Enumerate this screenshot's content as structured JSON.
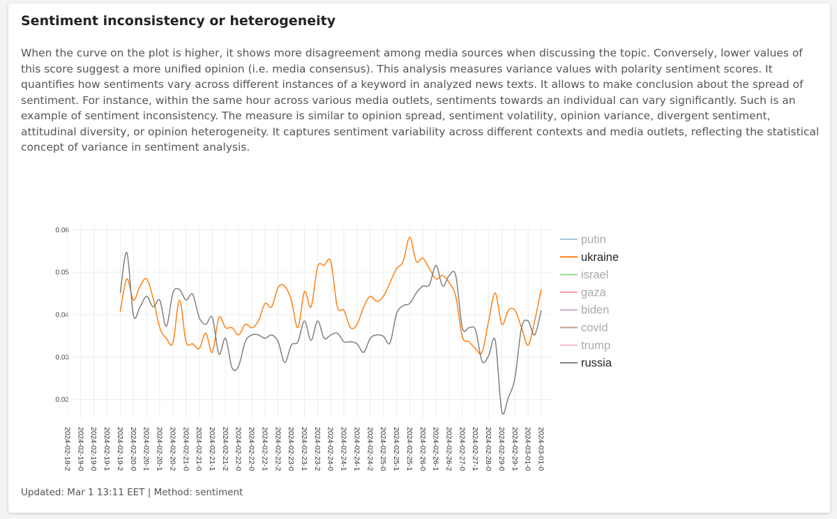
{
  "header": {
    "title": "Sentiment inconsistency or heterogeneity"
  },
  "description": "When the curve on the plot is higher, it shows more disagreement among media sources when discussing the topic. Conversely, lower values of this score suggest a more unified opinion (i.e. media consensus). This analysis measures variance values with polarity sentiment scores. It quantifies how sentiments vary across different instances of a keyword in analyzed news texts. It allows to make conclusion about the spread of sentiment. For instance, within the same hour across various media outlets, sentiments towards an individual can vary significantly. Such is an example of sentiment inconsistency. The measure is similar to opinion spread, sentiment volatility, opinion variance, divergent sentiment, attitudinal diversity, or opinion heterogeneity. It captures sentiment variability across different contexts and media outlets, reflecting the statistical concept of variance in sentiment analysis.",
  "footer": "Updated: Mar 1 13:11 EET | Method: sentiment",
  "chart_data": {
    "type": "line",
    "categories": [
      "2024-02-18-2",
      null,
      "2024-02-19-0",
      null,
      "2024-02-19-0",
      null,
      "2024-02-19-1",
      null,
      "2024-02-19-2",
      null,
      "2024-02-20-0",
      null,
      "2024-02-20-1",
      null,
      "2024-02-20-1",
      null,
      "2024-02-20-2",
      null,
      "2024-02-21-0",
      null,
      "2024-02-21-0",
      null,
      "2024-02-21-1",
      null,
      "2024-02-21-2",
      null,
      "2024-02-22-0",
      null,
      "2024-02-22-0",
      null,
      "2024-02-22-1",
      null,
      "2024-02-22-2",
      null,
      "2024-02-23-0",
      null,
      "2024-02-23-1",
      null,
      "2024-02-23-2",
      null,
      "2024-02-24-0",
      null,
      "2024-02-24-1",
      null,
      "2024-02-24-1",
      null,
      "2024-02-24-2",
      null,
      "2024-02-25-0",
      null,
      "2024-02-25-1",
      null,
      "2024-02-25-1",
      null,
      "2024-02-26-0",
      null,
      "2024-02-26-1",
      null,
      "2024-02-26-2",
      null,
      "2024-02-27-0",
      null,
      "2024-02-27-1",
      null,
      "2024-02-28-0",
      null,
      "2024-02-29-0",
      null,
      "2024-02-29-1",
      null,
      "2024-03-01-0",
      null,
      "2024-03-01-0"
    ],
    "ylim": [
      0.0155,
      0.0607
    ],
    "yticks": [
      0.02,
      0.03,
      0.04,
      0.05,
      0.06
    ],
    "grid": true,
    "series": [
      {
        "name": "putin",
        "color": "#9ecae1",
        "visible": false,
        "values": [
          null,
          null,
          null,
          null,
          null,
          null,
          null,
          null,
          null,
          null,
          null,
          null,
          null,
          null,
          null,
          null,
          null,
          null,
          null,
          null,
          null,
          null,
          null,
          null,
          null,
          null,
          null,
          null,
          null,
          null,
          null,
          null,
          null,
          null,
          null,
          null,
          null,
          null,
          null,
          null,
          null,
          null,
          null,
          null,
          null,
          null,
          null,
          null,
          null,
          null,
          null,
          null,
          null,
          null,
          null,
          null,
          null,
          null,
          null,
          null,
          null,
          null,
          null,
          null,
          null,
          null,
          null,
          null,
          null,
          null,
          null,
          null,
          null
        ]
      },
      {
        "name": "ukraine",
        "color": "#ff7f0e",
        "visible": true,
        "values": [
          null,
          null,
          null,
          null,
          null,
          null,
          null,
          null,
          0.0407,
          0.0484,
          0.0434,
          0.0467,
          0.0484,
          0.0438,
          0.0369,
          0.0344,
          0.0333,
          0.0434,
          0.0336,
          0.0331,
          0.032,
          0.0356,
          0.0311,
          0.0393,
          0.0369,
          0.0369,
          0.0352,
          0.0377,
          0.0369,
          0.0385,
          0.0426,
          0.0418,
          0.0464,
          0.0467,
          0.0434,
          0.0369,
          0.0454,
          0.0418,
          0.0513,
          0.0516,
          0.0525,
          0.0418,
          0.041,
          0.0369,
          0.0377,
          0.0418,
          0.0443,
          0.0431,
          0.0443,
          0.0475,
          0.0508,
          0.0525,
          0.0582,
          0.0525,
          0.0533,
          0.0508,
          0.0484,
          0.0492,
          0.0475,
          0.0443,
          0.0348,
          0.0336,
          0.032,
          0.0311,
          0.0385,
          0.0451,
          0.0377,
          0.041,
          0.041,
          0.0369,
          0.0328,
          0.0385,
          0.046
        ]
      },
      {
        "name": "israel",
        "color": "#98df8a",
        "visible": false,
        "values": [
          null,
          null,
          null,
          null,
          null,
          null,
          null,
          null,
          null,
          null,
          null,
          null,
          null,
          null,
          null,
          null,
          null,
          null,
          null,
          null,
          null,
          null,
          null,
          null,
          null,
          null,
          null,
          null,
          null,
          null,
          null,
          null,
          null,
          null,
          null,
          null,
          null,
          null,
          null,
          null,
          null,
          null,
          null,
          null,
          null,
          null,
          null,
          null,
          null,
          null,
          null,
          null,
          null,
          null,
          null,
          null,
          null,
          null,
          null,
          null,
          null,
          null,
          null,
          null,
          null,
          null,
          null,
          null,
          null,
          null,
          null,
          null,
          null
        ]
      },
      {
        "name": "gaza",
        "color": "#ff9896",
        "visible": false,
        "values": [
          null,
          null,
          null,
          null,
          null,
          null,
          null,
          null,
          null,
          null,
          null,
          null,
          null,
          null,
          null,
          null,
          null,
          null,
          null,
          null,
          null,
          null,
          null,
          null,
          null,
          null,
          null,
          null,
          null,
          null,
          null,
          null,
          null,
          null,
          null,
          null,
          null,
          null,
          null,
          null,
          null,
          null,
          null,
          null,
          null,
          null,
          null,
          null,
          null,
          null,
          null,
          null,
          null,
          null,
          null,
          null,
          null,
          null,
          null,
          null,
          null,
          null,
          null,
          null,
          null,
          null,
          null,
          null,
          null,
          null,
          null,
          null,
          null
        ]
      },
      {
        "name": "biden",
        "color": "#c5b0d5",
        "visible": false,
        "values": [
          null,
          null,
          null,
          null,
          null,
          null,
          null,
          null,
          null,
          null,
          null,
          null,
          null,
          null,
          null,
          null,
          null,
          null,
          null,
          null,
          null,
          null,
          null,
          null,
          null,
          null,
          null,
          null,
          null,
          null,
          null,
          null,
          null,
          null,
          null,
          null,
          null,
          null,
          null,
          null,
          null,
          null,
          null,
          null,
          null,
          null,
          null,
          null,
          null,
          null,
          null,
          null,
          null,
          null,
          null,
          null,
          null,
          null,
          null,
          null,
          null,
          null,
          null,
          null,
          null,
          null,
          null,
          null,
          null,
          null,
          null,
          null,
          null
        ]
      },
      {
        "name": "covid",
        "color": "#c49c94",
        "visible": false,
        "values": [
          null,
          null,
          null,
          null,
          null,
          null,
          null,
          null,
          null,
          null,
          null,
          null,
          null,
          null,
          null,
          null,
          null,
          null,
          null,
          null,
          null,
          null,
          null,
          null,
          null,
          null,
          null,
          null,
          null,
          null,
          null,
          null,
          null,
          null,
          null,
          null,
          null,
          null,
          null,
          null,
          null,
          null,
          null,
          null,
          null,
          null,
          null,
          null,
          null,
          null,
          null,
          null,
          null,
          null,
          null,
          null,
          null,
          null,
          null,
          null,
          null,
          null,
          null,
          null,
          null,
          null,
          null,
          null,
          null,
          null,
          null,
          null,
          null
        ]
      },
      {
        "name": "trump",
        "color": "#f7b6d2",
        "visible": false,
        "values": [
          null,
          null,
          null,
          null,
          null,
          null,
          null,
          null,
          null,
          null,
          null,
          null,
          null,
          null,
          null,
          null,
          null,
          null,
          null,
          null,
          null,
          null,
          null,
          null,
          null,
          null,
          null,
          null,
          null,
          null,
          null,
          null,
          null,
          null,
          null,
          null,
          null,
          null,
          null,
          null,
          null,
          null,
          null,
          null,
          null,
          null,
          null,
          null,
          null,
          null,
          null,
          null,
          null,
          null,
          null,
          null,
          null,
          null,
          null,
          null,
          null,
          null,
          null,
          null,
          null,
          null,
          null,
          null,
          null,
          null,
          null,
          null,
          null
        ]
      },
      {
        "name": "russia",
        "color": "#7f7f7f",
        "visible": true,
        "values": [
          null,
          null,
          null,
          null,
          null,
          null,
          null,
          null,
          0.0451,
          0.0546,
          0.0398,
          0.0418,
          0.0443,
          0.0418,
          0.0434,
          0.0372,
          0.0451,
          0.0459,
          0.0434,
          0.0448,
          0.0393,
          0.0377,
          0.0393,
          0.0307,
          0.0344,
          0.0274,
          0.0279,
          0.0336,
          0.0352,
          0.0352,
          0.0344,
          0.0352,
          0.0336,
          0.0287,
          0.0328,
          0.0336,
          0.0385,
          0.0339,
          0.0385,
          0.0344,
          0.0352,
          0.0356,
          0.0336,
          0.0336,
          0.0331,
          0.0311,
          0.0344,
          0.0352,
          0.0349,
          0.0333,
          0.0402,
          0.0421,
          0.0426,
          0.0451,
          0.0467,
          0.047,
          0.0516,
          0.0467,
          0.0492,
          0.0492,
          0.0369,
          0.0369,
          0.0364,
          0.029,
          0.0303,
          0.0339,
          0.0172,
          0.0205,
          0.0251,
          0.0369,
          0.0385,
          0.0352,
          0.041
        ]
      }
    ]
  }
}
